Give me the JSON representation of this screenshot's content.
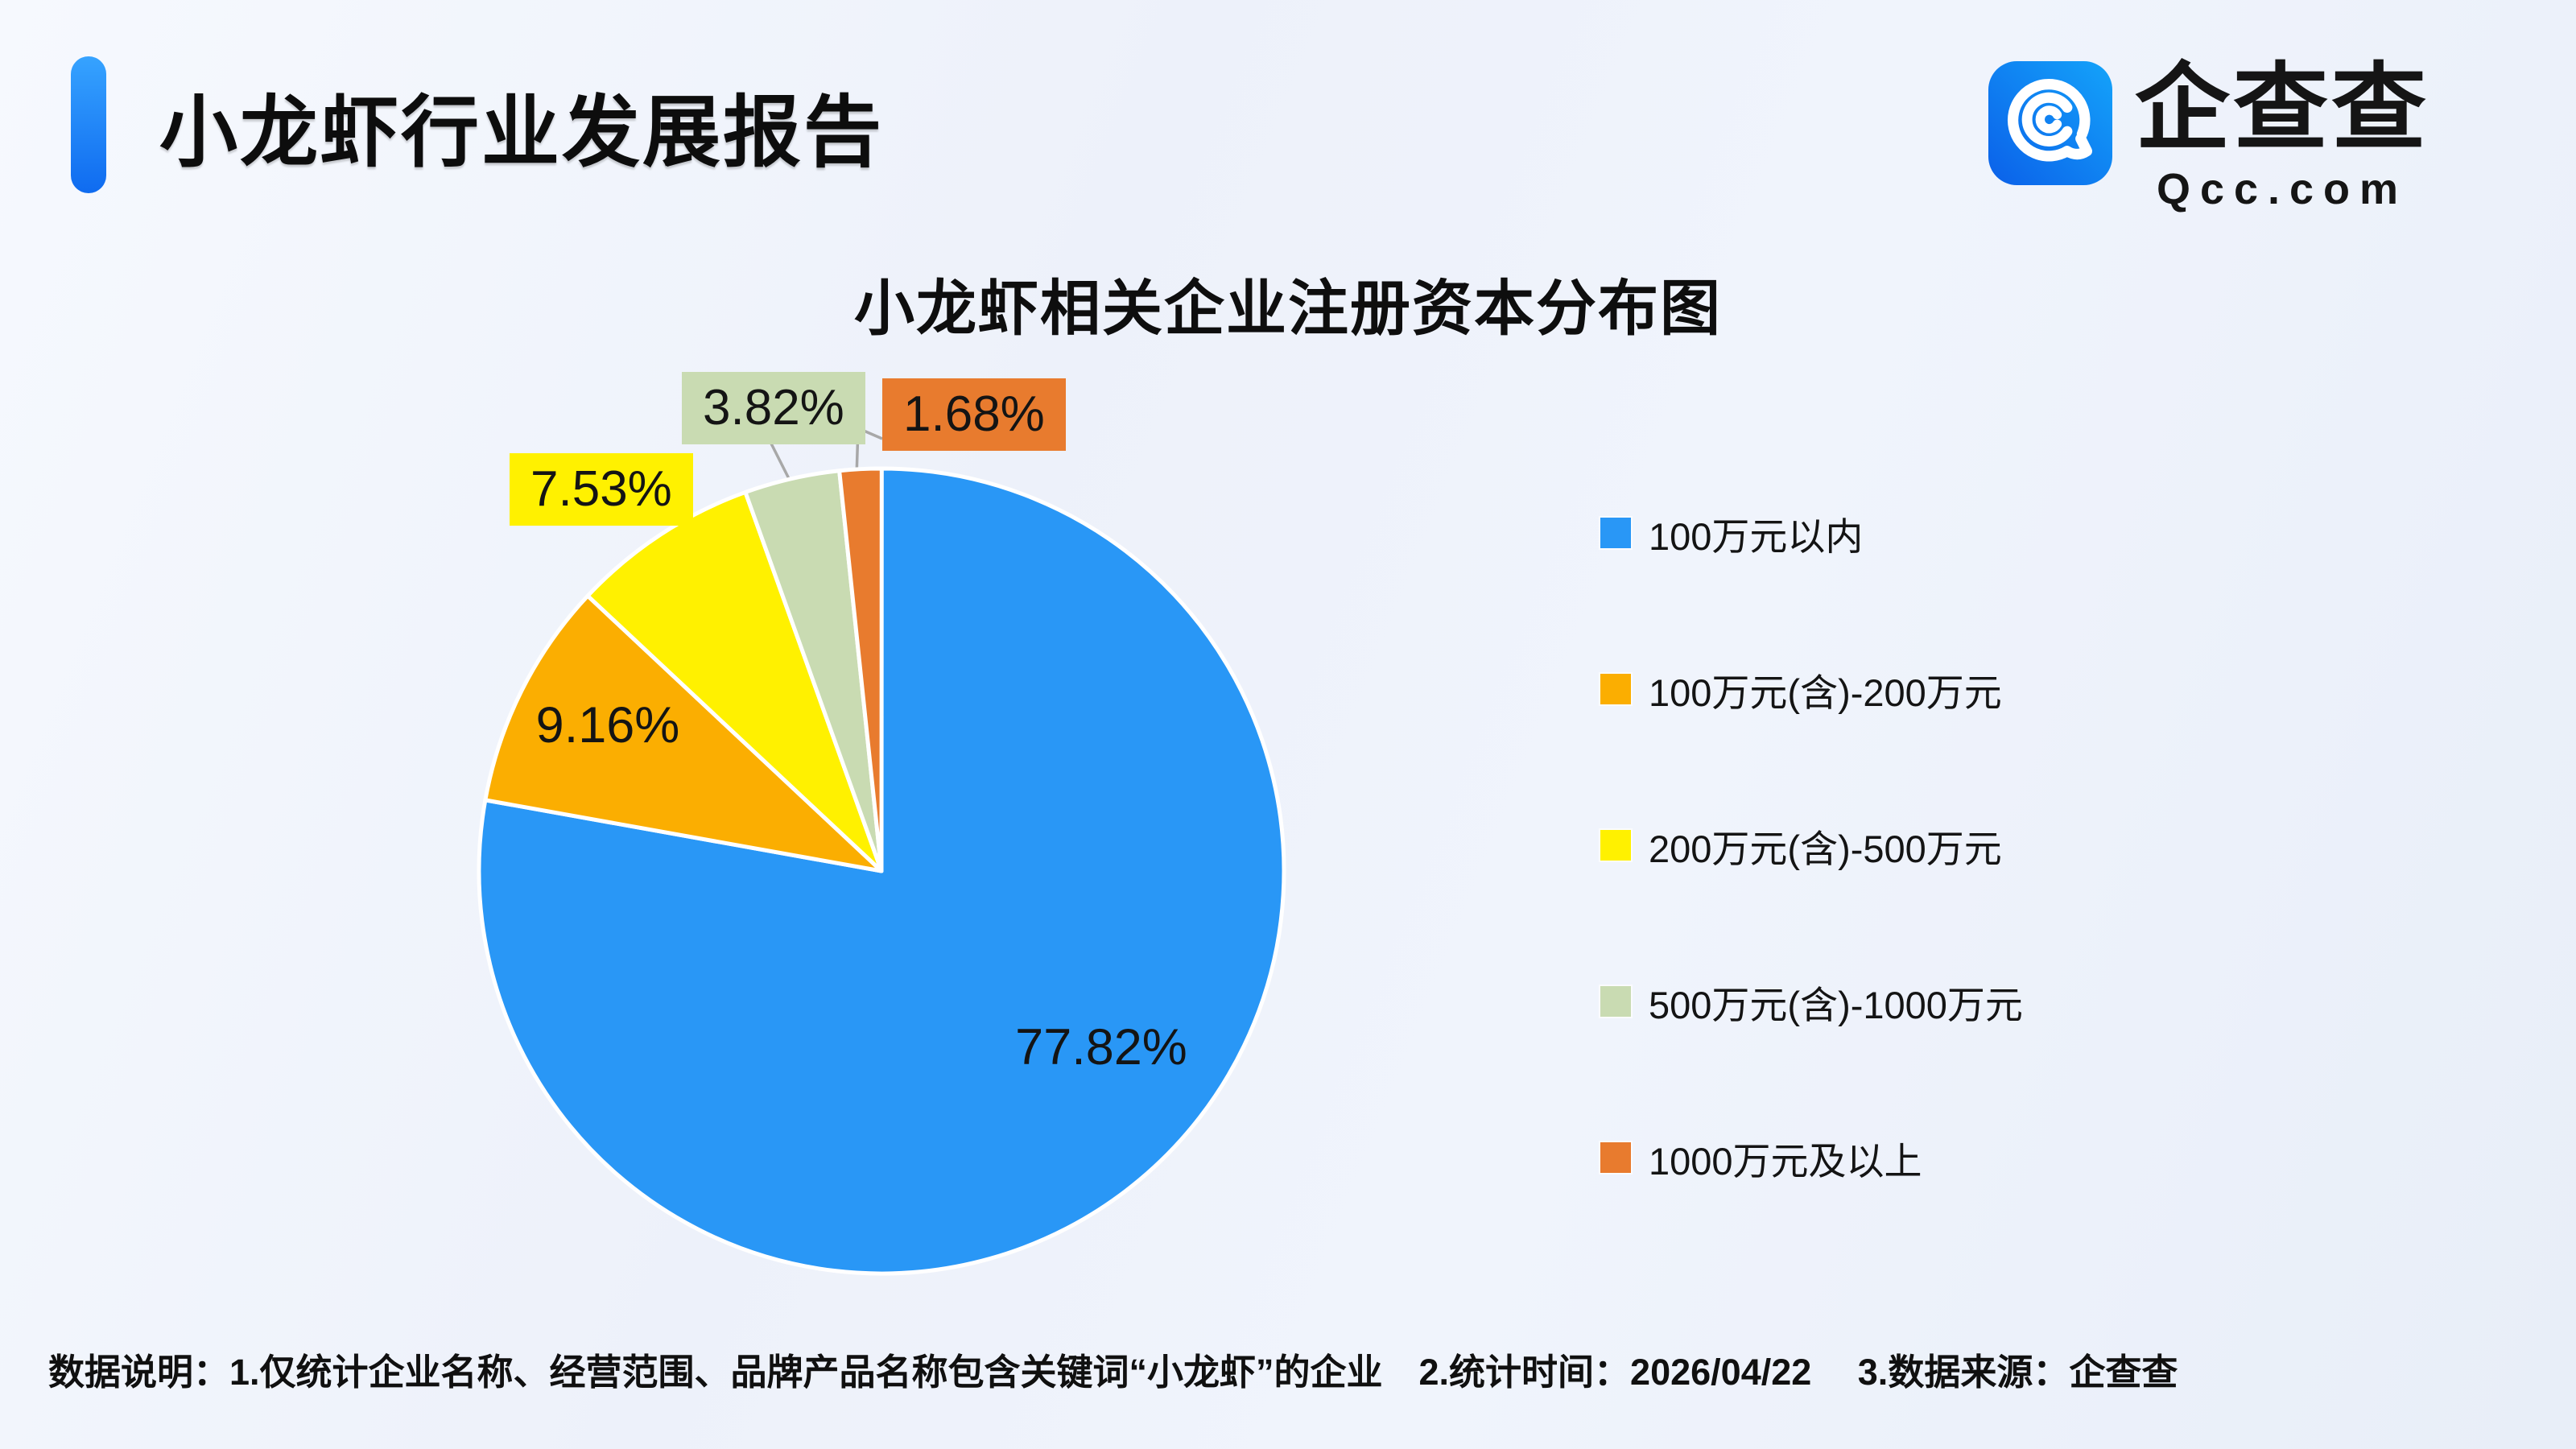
{
  "page": {
    "title": "小龙虾行业发展报告",
    "footnote": "数据说明：1.仅统计企业名称、经营范围、品牌产品名称包含关键词“小龙虾”的企业　2.统计时间：2026/04/22　 3.数据来源：企查查"
  },
  "logo": {
    "icon": "qcc-monogram-icon",
    "name": "企查查",
    "domain": "Qcc.com",
    "icon_gradient_start": "#0B60E9",
    "icon_gradient_end": "#14A3FA"
  },
  "chart_data": {
    "type": "pie",
    "title": "小龙虾相关企业注册资本分布图",
    "unit": "%",
    "direction": "clockwise",
    "start_angle": "12-oclock",
    "legend_position": "right",
    "leader_line_color": "#A8A8A8",
    "slice_border_color": "#FFFFFF",
    "slices": [
      {
        "name": "100万元以内",
        "value": 77.82,
        "label": "77.82%",
        "color": "#2997F6",
        "label_placement": "inside"
      },
      {
        "name": "100万元(含)-200万元",
        "value": 9.16,
        "label": "9.16%",
        "color": "#FBAE01",
        "label_placement": "inside"
      },
      {
        "name": "200万元(含)-500万元",
        "value": 7.53,
        "label": "7.53%",
        "color": "#FFF100",
        "label_placement": "outside-box"
      },
      {
        "name": "500万元(含)-1000万元",
        "value": 3.82,
        "label": "3.82%",
        "color": "#C9DBB2",
        "label_placement": "outside-box"
      },
      {
        "name": "1000万元及以上",
        "value": 1.68,
        "label": "1.68%",
        "color": "#E87B2E",
        "label_placement": "outside-box"
      }
    ]
  }
}
